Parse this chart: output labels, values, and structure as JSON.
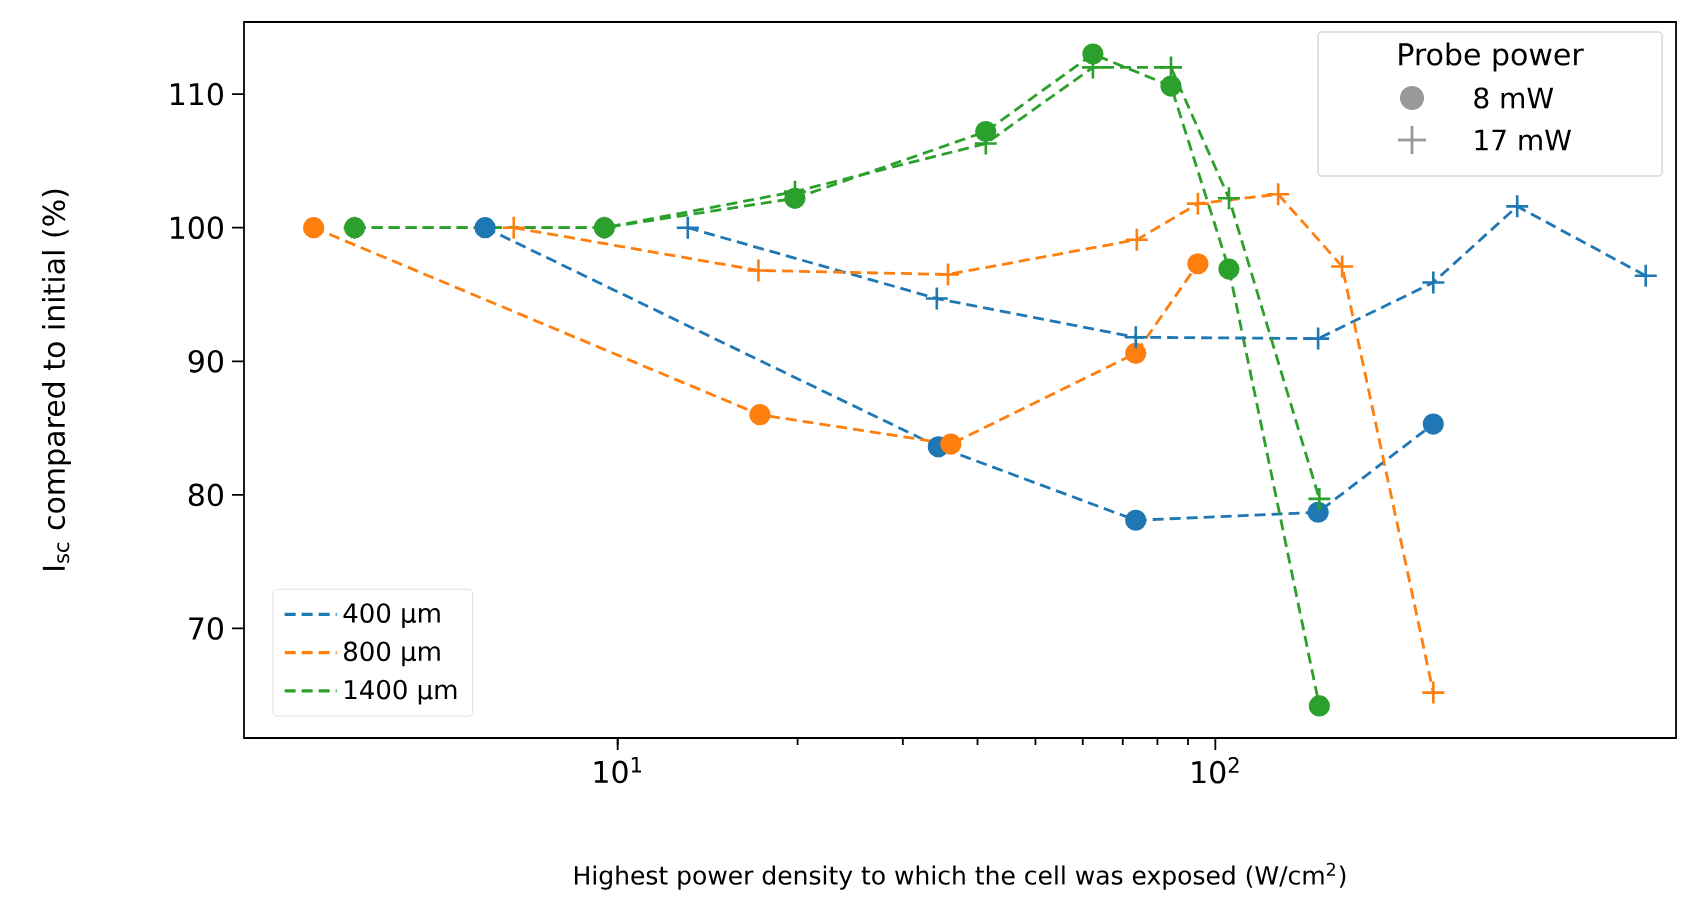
{
  "chart_data": {
    "type": "line",
    "xlabel": "Highest power density to which the cell was exposed (W/cm$^{2}$)",
    "ylabel": "I$_{sc}$ compared to initial (%)",
    "log": "x",
    "xlim": [
      2.37,
      590
    ],
    "ylim": [
      61.8,
      115.4
    ],
    "xticks": [
      {
        "value": 10,
        "label": "10$^{1}$"
      },
      {
        "value": 100,
        "label": "10$^{2}$"
      }
    ],
    "yticks": [
      70,
      80,
      90,
      100,
      110
    ],
    "grid": false,
    "legend": "bottom left",
    "legend_title": "Probe power",
    "annotations": [
      "8 mW",
      "17 mW"
    ],
    "line_style": "dashed",
    "series": [
      {
        "name": "400 μm",
        "color": "#1f77b4",
        "marker": "circle",
        "x": [
          6.0,
          34.4,
          73.6,
          148.6,
          231.6
        ],
        "values": [
          100,
          83.6,
          78.1,
          78.7,
          85.3
        ]
      },
      {
        "name": "800 μm",
        "color": "#ff7f0e",
        "marker": "circle",
        "x": [
          3.1,
          17.3,
          36.1,
          73.6,
          93.5
        ],
        "values": [
          100,
          86.0,
          83.8,
          90.6,
          97.3
        ]
      },
      {
        "name": "1400 μm",
        "color": "#2ca02c",
        "marker": "circle",
        "x": [
          3.63,
          9.5,
          19.8,
          41.3,
          62.4,
          84.3,
          105.4,
          149.3
        ],
        "values": [
          100,
          100,
          102.2,
          107.2,
          113.0,
          110.6,
          96.9,
          64.2
        ]
      },
      {
        "color": "#1f77b4",
        "marker": "cross",
        "x": [
          13.1,
          34.2,
          73.6,
          148.6,
          231.6,
          320,
          525
        ],
        "values": [
          100,
          94.7,
          91.8,
          91.7,
          95.9,
          101.6,
          96.4
        ]
      },
      {
        "color": "#ff7f0e",
        "marker": "cross",
        "x": [
          6.7,
          17.2,
          35.7,
          73.9,
          93.5,
          127.4,
          163,
          231.6
        ],
        "values": [
          100,
          96.8,
          96.5,
          99.1,
          101.8,
          102.5,
          97.1,
          65.2
        ]
      },
      {
        "color": "#2ca02c",
        "marker": "cross",
        "x": [
          3.63,
          9.5,
          19.8,
          41.3,
          62.4,
          84.3,
          105.4,
          149.3
        ],
        "values": [
          100,
          100,
          102.7,
          106.3,
          112.0,
          112.0,
          102.2,
          79.7
        ]
      }
    ]
  }
}
